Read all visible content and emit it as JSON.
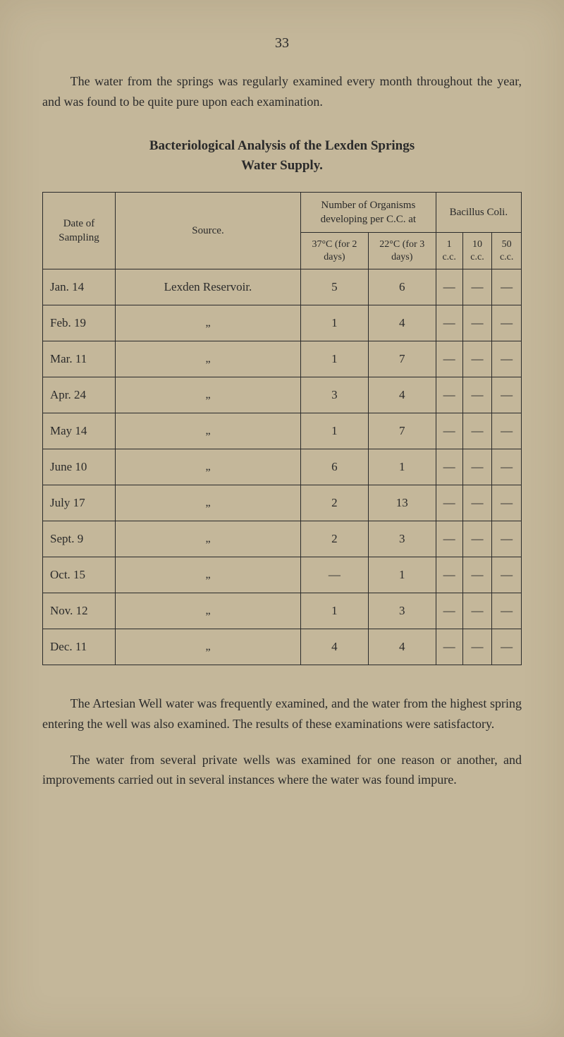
{
  "page_number": "33",
  "intro": "The water from the springs was regularly examined every month throughout the year, and was found to be quite pure upon each examination.",
  "table_title_line1": "Bacteriological Analysis of the Lexden Springs",
  "table_title_line2": "Water Supply.",
  "headers": {
    "date": "Date of Sampling",
    "source": "Source.",
    "organisms": "Number of Organisms developing per C.C. at",
    "bacillus": "Bacillus Coli.",
    "c37": "37°C (for 2 days)",
    "c22": "22°C (for 3 days)",
    "cc1": "1 c.c.",
    "cc10": "10 c.c.",
    "cc50": "50 c.c."
  },
  "source_first": "Lexden Reservoir.",
  "ditto": "„",
  "rows": [
    {
      "date": "Jan. 14",
      "c37": "5",
      "c22": "6",
      "cc1": "—",
      "cc10": "—",
      "cc50": "—"
    },
    {
      "date": "Feb. 19",
      "c37": "1",
      "c22": "4",
      "cc1": "—",
      "cc10": "—",
      "cc50": "—"
    },
    {
      "date": "Mar. 11",
      "c37": "1",
      "c22": "7",
      "cc1": "—",
      "cc10": "—",
      "cc50": "—"
    },
    {
      "date": "Apr. 24",
      "c37": "3",
      "c22": "4",
      "cc1": "—",
      "cc10": "—",
      "cc50": "—"
    },
    {
      "date": "May 14",
      "c37": "1",
      "c22": "7",
      "cc1": "—",
      "cc10": "—",
      "cc50": "—"
    },
    {
      "date": "June 10",
      "c37": "6",
      "c22": "1",
      "cc1": "—",
      "cc10": "—",
      "cc50": "—"
    },
    {
      "date": "July 17",
      "c37": "2",
      "c22": "13",
      "cc1": "—",
      "cc10": "—",
      "cc50": "—"
    },
    {
      "date": "Sept. 9",
      "c37": "2",
      "c22": "3",
      "cc1": "—",
      "cc10": "—",
      "cc50": "—"
    },
    {
      "date": "Oct. 15",
      "c37": "—",
      "c22": "1",
      "cc1": "—",
      "cc10": "—",
      "cc50": "—"
    },
    {
      "date": "Nov. 12",
      "c37": "1",
      "c22": "3",
      "cc1": "—",
      "cc10": "—",
      "cc50": "—"
    },
    {
      "date": "Dec. 11",
      "c37": "4",
      "c22": "4",
      "cc1": "—",
      "cc10": "—",
      "cc50": "—"
    }
  ],
  "para1": "The Artesian Well water was frequently examined, and the water from the highest spring entering the well was also examined. The results of these examinations were satisfactory.",
  "para2": "The water from several private wells was examined for one reason or another, and improvements carried out in several instances where the water was found impure.",
  "colors": {
    "page_bg": "#c4b79a",
    "text": "#2a2a2a",
    "border": "#2a2a2a"
  }
}
